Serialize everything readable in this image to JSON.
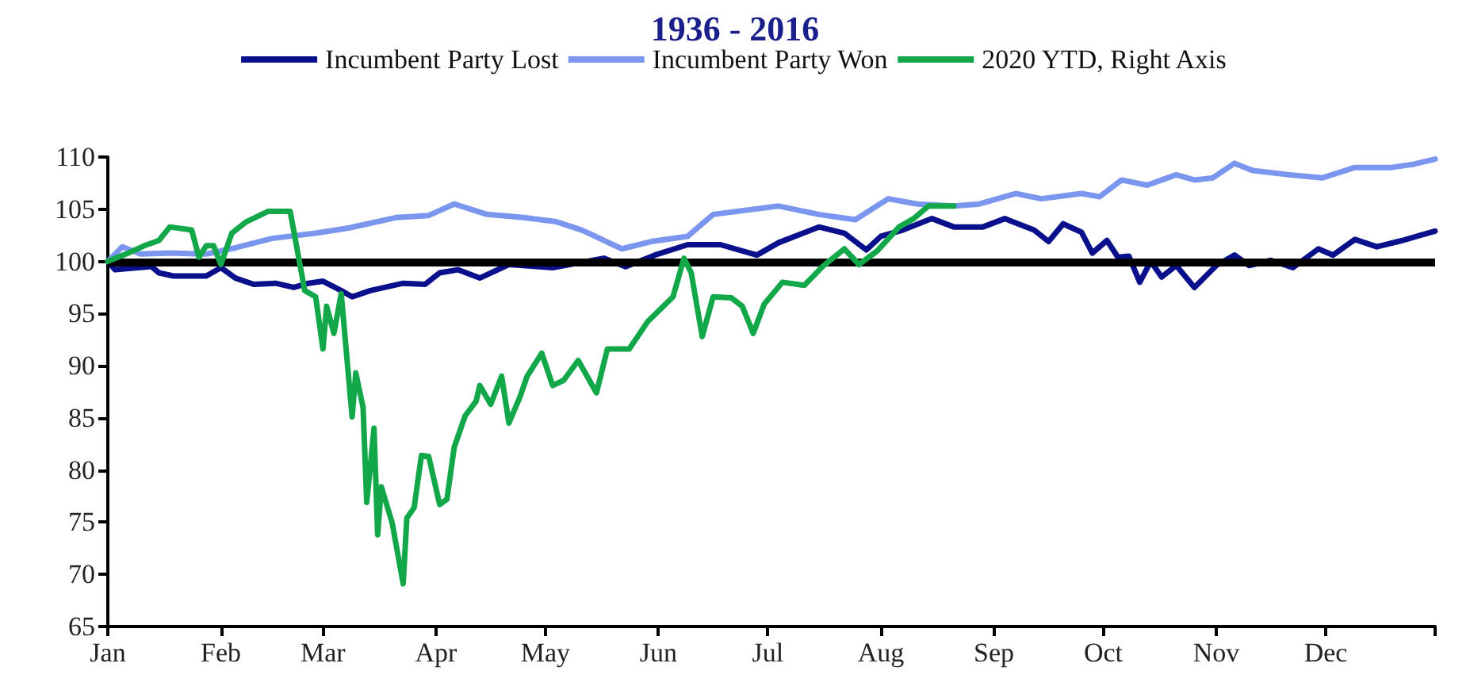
{
  "chart_data": {
    "type": "line",
    "title": "1936 - 2016",
    "legend": "top",
    "grid": false,
    "marker": "none",
    "line_style": "solid",
    "xlim": [
      "--01-01",
      "--12-31"
    ],
    "xticks": [
      {
        "value": "--01-01",
        "label": "Jan"
      },
      {
        "value": "--02-01",
        "label": "Feb"
      },
      {
        "value": "--03-01",
        "label": "Mar"
      },
      {
        "value": "--04-01",
        "label": "Apr"
      },
      {
        "value": "--05-01",
        "label": "May"
      },
      {
        "value": "--06-01",
        "label": "Jun"
      },
      {
        "value": "--07-01",
        "label": "Jul"
      },
      {
        "value": "--08-01",
        "label": "Aug"
      },
      {
        "value": "--09-01",
        "label": "Sep"
      },
      {
        "value": "--10-01",
        "label": "Oct"
      },
      {
        "value": "--11-01",
        "label": "Nov"
      },
      {
        "value": "--12-01",
        "label": "Dec"
      },
      {
        "value": "--12-31",
        "label": null
      }
    ],
    "ylim": [
      65,
      110
    ],
    "yticks": [
      65,
      70,
      75,
      80,
      85,
      90,
      95,
      100,
      105,
      110
    ],
    "ref_lines": [
      {
        "axis": "y",
        "value": 100,
        "color": "#000000"
      }
    ],
    "series": [
      {
        "name": "Incumbent Party Lost",
        "color": "#0a0f8c",
        "x": [
          "--01-01",
          "--01-03",
          "--01-13",
          "--01-15",
          "--01-19",
          "--01-28",
          "--02-01",
          "--02-05",
          "--02-10",
          "--02-16",
          "--02-21",
          "--02-25",
          "--03-01",
          "--03-06",
          "--03-09",
          "--03-14",
          "--03-23",
          "--03-29",
          "--04-02",
          "--04-07",
          "--04-13",
          "--04-21",
          "--05-03",
          "--05-17",
          "--05-23",
          "--05-31",
          "--06-09",
          "--06-18",
          "--06-28",
          "--07-04",
          "--07-15",
          "--07-22",
          "--07-28",
          "--08-01",
          "--08-07",
          "--08-15",
          "--08-21",
          "--08-29",
          "--09-04",
          "--09-12",
          "--09-16",
          "--09-20",
          "--09-25",
          "--09-28",
          "--10-02",
          "--10-05",
          "--10-08",
          "--10-11",
          "--10-14",
          "--10-17",
          "--10-21",
          "--10-26",
          "--11-01",
          "--11-06",
          "--11-10",
          "--11-16",
          "--11-22",
          "--11-29",
          "--12-03",
          "--12-09",
          "--12-15",
          "--12-22",
          "--12-26",
          "--12-31"
        ],
        "values": [
          100,
          99.2,
          99.5,
          98.9,
          98.6,
          98.6,
          99.4,
          98.4,
          97.8,
          97.9,
          97.5,
          97.9,
          98.1,
          97.2,
          96.6,
          97.2,
          97.9,
          97.8,
          98.9,
          99.2,
          98.4,
          99.7,
          99.4,
          100.3,
          99.5,
          100.6,
          101.6,
          101.6,
          100.6,
          101.8,
          103.3,
          102.7,
          101.1,
          102.4,
          103,
          104.1,
          103.3,
          103.3,
          104.1,
          103,
          101.9,
          103.6,
          102.8,
          100.8,
          102,
          100.4,
          100.5,
          98,
          100,
          98.5,
          99.6,
          97.5,
          99.6,
          100.6,
          99.6,
          100.1,
          99.4,
          101.2,
          100.6,
          102.1,
          101.4,
          102,
          102.4,
          102.9
        ]
      },
      {
        "name": "Incumbent Party Won",
        "color": "#7b96ee",
        "x": [
          "--01-01",
          "--01-05",
          "--01-10",
          "--01-18",
          "--01-28",
          "--02-05",
          "--02-15",
          "--02-27",
          "--03-08",
          "--03-21",
          "--03-30",
          "--04-06",
          "--04-15",
          "--04-25",
          "--05-04",
          "--05-11",
          "--05-22",
          "--05-30",
          "--06-09",
          "--06-16",
          "--07-04",
          "--07-15",
          "--07-25",
          "--08-03",
          "--08-11",
          "--08-21",
          "--08-28",
          "--09-07",
          "--09-14",
          "--09-25",
          "--09-30",
          "--10-06",
          "--10-13",
          "--10-21",
          "--10-26",
          "--10-31",
          "--11-06",
          "--11-11",
          "--11-21",
          "--11-30",
          "--12-09",
          "--12-19",
          "--12-25",
          "--12-31"
        ],
        "values": [
          100,
          101.4,
          100.7,
          100.8,
          100.7,
          101.3,
          102.2,
          102.7,
          103.2,
          104.2,
          104.4,
          105.5,
          104.5,
          104.2,
          103.8,
          103,
          101.2,
          101.9,
          102.4,
          104.5,
          105.3,
          104.5,
          104,
          106,
          105.5,
          105.3,
          105.5,
          106.5,
          106,
          106.5,
          106.2,
          107.8,
          107.3,
          108.3,
          107.8,
          108,
          109.4,
          108.7,
          108.3,
          108,
          109,
          109,
          109.3,
          109.8
        ]
      },
      {
        "name": "2020 YTD, Right Axis",
        "color": "#12a84a",
        "x": [
          "--01-01",
          "--01-06",
          "--01-11",
          "--01-15",
          "--01-18",
          "--01-24",
          "--01-26",
          "--01-28",
          "--01-30",
          "--02-01",
          "--02-04",
          "--02-08",
          "--02-14",
          "--02-20",
          "--02-24",
          "--02-27",
          "--03-01",
          "--03-02",
          "--03-04",
          "--03-06",
          "--03-09",
          "--03-10",
          "--03-12",
          "--03-13",
          "--03-15",
          "--03-16",
          "--03-17",
          "--03-20",
          "--03-23",
          "--03-24",
          "--03-26",
          "--03-28",
          "--03-30",
          "--04-02",
          "--04-04",
          "--04-06",
          "--04-09",
          "--04-12",
          "--04-13",
          "--04-16",
          "--04-19",
          "--04-21",
          "--04-24",
          "--04-26",
          "--04-30",
          "--05-03",
          "--05-06",
          "--05-10",
          "--05-15",
          "--05-18",
          "--05-24",
          "--05-29",
          "--06-05",
          "--06-08",
          "--06-10",
          "--06-13",
          "--06-16",
          "--06-21",
          "--06-24",
          "--06-27",
          "--06-30",
          "--07-05",
          "--07-11",
          "--07-16",
          "--07-22",
          "--07-26",
          "--07-31",
          "--08-06",
          "--08-10",
          "--08-14",
          "--08-21"
        ],
        "values": [
          100,
          100.7,
          101.5,
          102,
          103.3,
          103,
          100.4,
          101.5,
          101.5,
          99.7,
          102.7,
          103.8,
          104.8,
          104.8,
          97.2,
          96.6,
          91.6,
          95.7,
          93.1,
          96.9,
          85.1,
          89.3,
          86,
          76.9,
          84,
          73.8,
          78.4,
          74.9,
          69.1,
          75.4,
          76.4,
          81.4,
          81.3,
          76.7,
          77.2,
          82.2,
          85.2,
          86.6,
          88.1,
          86.3,
          89,
          84.5,
          87,
          89,
          91.2,
          88.1,
          88.6,
          90.5,
          87.4,
          91.6,
          91.6,
          94.2,
          96.6,
          100.3,
          98.9,
          92.8,
          96.6,
          96.5,
          95.7,
          93.1,
          95.9,
          98,
          97.7,
          99.5,
          101.2,
          99.7,
          101,
          103.3,
          104.1,
          105.3,
          105.3
        ]
      }
    ]
  }
}
